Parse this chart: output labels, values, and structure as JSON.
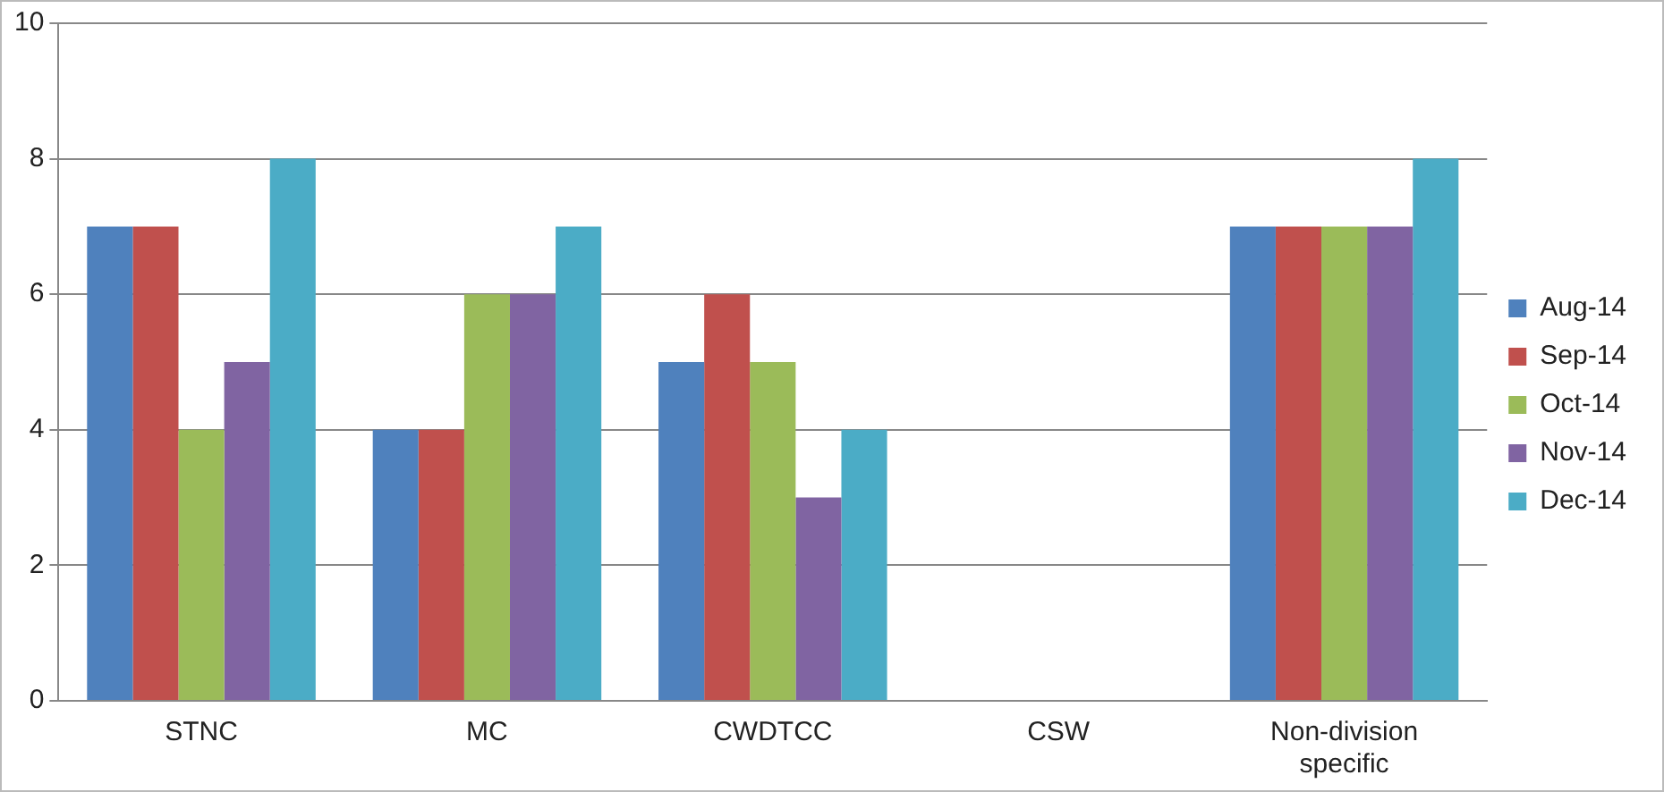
{
  "chart_data": {
    "type": "bar",
    "categories": [
      "STNC",
      "MC",
      "CWDTCC",
      "CSW",
      "Non-division specific"
    ],
    "series": [
      {
        "name": "Aug-14",
        "color": "#4f81bd",
        "values": [
          7,
          4,
          5,
          0,
          7
        ]
      },
      {
        "name": "Sep-14",
        "color": "#c0504d",
        "values": [
          7,
          4,
          6,
          0,
          7
        ]
      },
      {
        "name": "Oct-14",
        "color": "#9bbb59",
        "values": [
          4,
          6,
          5,
          0,
          7
        ]
      },
      {
        "name": "Nov-14",
        "color": "#8064a2",
        "values": [
          5,
          6,
          3,
          0,
          7
        ]
      },
      {
        "name": "Dec-14",
        "color": "#4bacc6",
        "values": [
          8,
          7,
          4,
          0,
          8
        ]
      }
    ],
    "ylim": [
      0,
      10
    ],
    "yticks": [
      0,
      2,
      4,
      6,
      8,
      10
    ],
    "grid": "y",
    "legend": "right"
  }
}
